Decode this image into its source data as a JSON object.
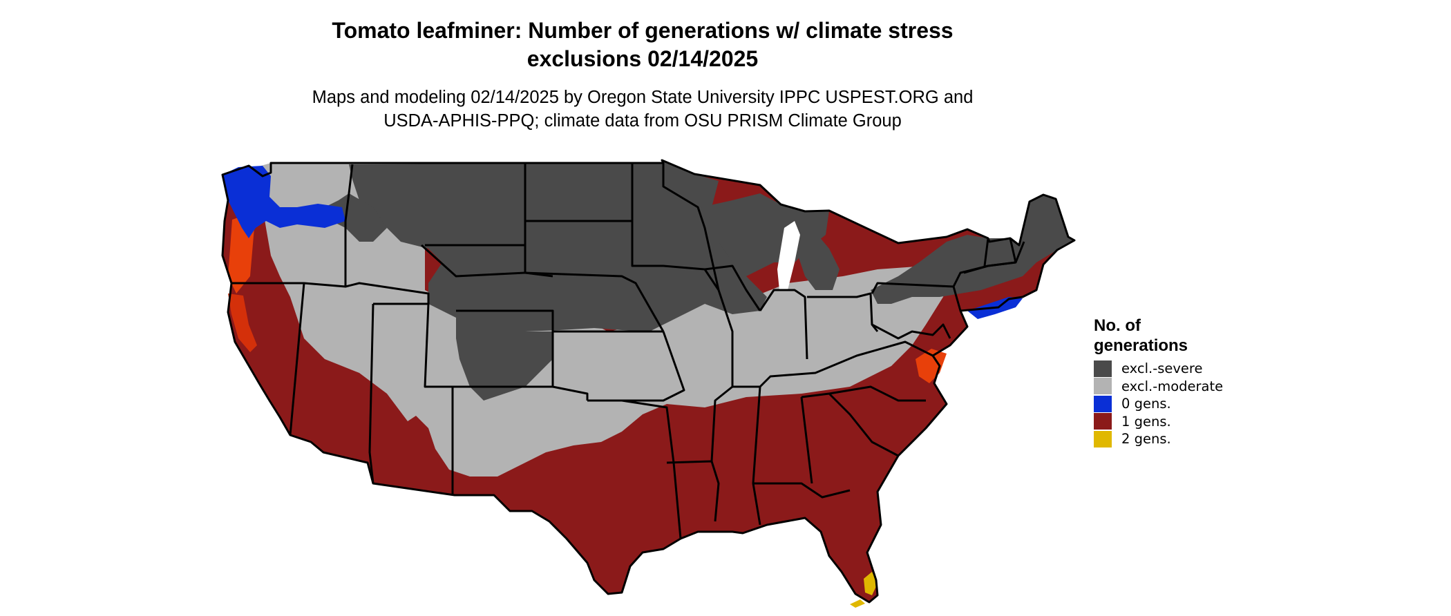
{
  "title_line1": "Tomato leafminer: Number of generations w/ climate stress",
  "title_line2": "exclusions 02/14/2025",
  "subtitle_line1": "Maps and modeling 02/14/2025 by Oregon State University IPPC USPEST.ORG and",
  "subtitle_line2": "USDA-APHIS-PPQ; climate data from OSU PRISM Climate Group",
  "legend": {
    "title_line1": "No. of",
    "title_line2": "generations",
    "items": [
      {
        "label": "excl.-severe",
        "color": "#4a4a4a"
      },
      {
        "label": "excl.-moderate",
        "color": "#b3b3b3"
      },
      {
        "label": "0 gens.",
        "color": "#0a2fd6"
      },
      {
        "label": "1 gens.",
        "color": "#8b1a1a"
      },
      {
        "label": "2 gens.",
        "color": "#e0b800"
      }
    ]
  },
  "colors": {
    "severe": "#4a4a4a",
    "moderate": "#b3b3b3",
    "zero": "#0a2fd6",
    "one": "#8b1a1a",
    "one_hot": "#e8400a",
    "two": "#e0b800",
    "border": "#000000"
  }
}
